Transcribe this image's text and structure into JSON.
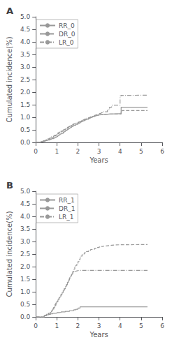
{
  "chart_data": [
    {
      "type": "step",
      "title": "A",
      "xlabel": "Years",
      "ylabel": "Cumulated incidence(%)",
      "xlim": [
        0,
        6
      ],
      "ylim": [
        0,
        5.0
      ],
      "xticks": [
        0,
        1,
        2,
        3,
        4,
        5,
        6
      ],
      "yticks": [
        {
          "value": 0.0,
          "label": "0.0"
        },
        0.5,
        {
          "value": 1.0,
          "label": "1.0"
        },
        1.5,
        {
          "value": 2.0,
          "label": "2.0"
        },
        2.5,
        {
          "value": 3.0,
          "label": "3.0"
        },
        3.5,
        {
          "value": 4.0,
          "label": "4.0"
        },
        4.5,
        {
          "value": 5.0,
          "label": "5.0"
        }
      ],
      "grid": false,
      "legend": "upper left",
      "series": [
        {
          "name": "RR_0",
          "color": "#999999",
          "line_style": "solid",
          "x": [
            0,
            0.25,
            0.35,
            0.45,
            0.55,
            0.65,
            0.7,
            0.75,
            0.85,
            0.9,
            0.95,
            1.0,
            1.05,
            1.1,
            1.15,
            1.2,
            1.3,
            1.35,
            1.4,
            1.45,
            1.5,
            1.55,
            1.6,
            1.65,
            1.7,
            1.75,
            1.8,
            1.9,
            2.0,
            2.05,
            2.1,
            2.15,
            2.2,
            2.25,
            2.3,
            2.35,
            2.4,
            2.5,
            2.55,
            2.6,
            2.65,
            2.7,
            2.8,
            2.85,
            2.9,
            3.0,
            3.1,
            3.2,
            3.4,
            3.5,
            4.0,
            4.05,
            5.3
          ],
          "values": [
            0,
            0.02,
            0.04,
            0.07,
            0.09,
            0.11,
            0.13,
            0.15,
            0.17,
            0.19,
            0.21,
            0.24,
            0.27,
            0.3,
            0.33,
            0.36,
            0.4,
            0.43,
            0.46,
            0.49,
            0.52,
            0.55,
            0.57,
            0.6,
            0.63,
            0.65,
            0.68,
            0.72,
            0.75,
            0.77,
            0.8,
            0.82,
            0.84,
            0.86,
            0.88,
            0.9,
            0.92,
            0.95,
            0.97,
            0.99,
            1.01,
            1.03,
            1.05,
            1.07,
            1.08,
            1.1,
            1.11,
            1.12,
            1.13,
            1.14,
            1.14,
            1.4,
            1.4
          ]
        },
        {
          "name": "DR_0",
          "color": "#999999",
          "line_style": "dashed",
          "x": [
            0,
            0.25,
            0.35,
            0.45,
            0.55,
            0.65,
            0.7,
            0.75,
            0.85,
            0.9,
            0.95,
            1.0,
            1.05,
            1.1,
            1.15,
            1.2,
            1.3,
            1.35,
            1.4,
            1.45,
            1.5,
            1.55,
            1.6,
            1.65,
            1.7,
            1.75,
            1.8,
            1.9,
            2.0,
            2.05,
            2.1,
            2.15,
            2.2,
            2.25,
            2.3,
            2.35,
            2.4,
            2.5,
            2.55,
            2.6,
            2.65,
            2.7,
            2.8,
            2.85,
            2.9,
            3.0,
            3.1,
            3.2,
            3.4,
            3.5,
            4.0,
            4.05,
            4.1,
            5.3
          ],
          "values": [
            0,
            0.03,
            0.06,
            0.09,
            0.12,
            0.15,
            0.18,
            0.2,
            0.23,
            0.26,
            0.29,
            0.32,
            0.35,
            0.38,
            0.41,
            0.44,
            0.47,
            0.5,
            0.53,
            0.55,
            0.58,
            0.61,
            0.63,
            0.66,
            0.68,
            0.71,
            0.73,
            0.76,
            0.79,
            0.81,
            0.83,
            0.85,
            0.87,
            0.89,
            0.91,
            0.92,
            0.94,
            0.96,
            0.98,
            1.0,
            1.01,
            1.03,
            1.05,
            1.07,
            1.09,
            1.1,
            1.11,
            1.12,
            1.13,
            1.13,
            1.13,
            1.25,
            1.27,
            1.27
          ]
        },
        {
          "name": "LR_0",
          "color": "#999999",
          "line_style": "dashdot",
          "x": [
            0,
            0.25,
            0.35,
            0.45,
            0.55,
            0.65,
            0.7,
            0.75,
            0.85,
            0.9,
            0.95,
            1.0,
            1.05,
            1.1,
            1.15,
            1.2,
            1.3,
            1.35,
            1.4,
            1.45,
            1.5,
            1.55,
            1.6,
            1.65,
            1.7,
            1.75,
            1.8,
            1.9,
            2.0,
            2.05,
            2.1,
            2.15,
            2.2,
            2.25,
            2.3,
            2.35,
            2.4,
            2.5,
            2.55,
            2.6,
            2.65,
            2.7,
            2.8,
            2.85,
            2.9,
            3.0,
            3.1,
            3.2,
            3.4,
            3.5,
            3.6,
            4.0,
            4.05,
            4.1,
            5.3
          ],
          "values": [
            0,
            0.03,
            0.07,
            0.11,
            0.14,
            0.17,
            0.2,
            0.23,
            0.26,
            0.29,
            0.32,
            0.35,
            0.38,
            0.41,
            0.44,
            0.47,
            0.5,
            0.52,
            0.55,
            0.57,
            0.6,
            0.62,
            0.64,
            0.67,
            0.69,
            0.72,
            0.74,
            0.77,
            0.8,
            0.82,
            0.84,
            0.86,
            0.88,
            0.9,
            0.92,
            0.94,
            0.96,
            0.98,
            1.0,
            1.02,
            1.04,
            1.06,
            1.08,
            1.1,
            1.12,
            1.15,
            1.18,
            1.22,
            1.3,
            1.4,
            1.48,
            1.85,
            1.87,
            1.88,
            1.88
          ]
        }
      ]
    },
    {
      "type": "step",
      "title": "B",
      "xlabel": "Years",
      "ylabel": "Cumulated incidence(%)",
      "xlim": [
        0,
        6
      ],
      "ylim": [
        0,
        5.0
      ],
      "xticks": [
        0,
        1,
        2,
        3,
        4,
        5,
        6
      ],
      "yticks": [
        {
          "value": 0.0,
          "label": "0.0"
        },
        0.5,
        {
          "value": 1.0,
          "label": "1.0"
        },
        1.5,
        {
          "value": 2.0,
          "label": "2.0"
        },
        2.5,
        {
          "value": 3.0,
          "label": "3.0"
        },
        3.5,
        {
          "value": 4.0,
          "label": "4.0"
        },
        4.5,
        {
          "value": 5.0,
          "label": "5.0"
        }
      ],
      "grid": false,
      "legend": "upper left",
      "series": [
        {
          "name": "RR_1",
          "color": "#999999",
          "line_style": "solid",
          "x": [
            0,
            0.4,
            0.5,
            0.6,
            0.7,
            0.8,
            0.9,
            1.0,
            1.1,
            1.2,
            1.4,
            1.6,
            1.8,
            1.9,
            2.0,
            2.1,
            5.3
          ],
          "values": [
            0,
            0.05,
            0.08,
            0.1,
            0.12,
            0.14,
            0.15,
            0.17,
            0.18,
            0.2,
            0.22,
            0.25,
            0.28,
            0.3,
            0.35,
            0.4,
            0.4
          ]
        },
        {
          "name": "DR_1",
          "color": "#999999",
          "line_style": "dashed",
          "x": [
            0,
            0.4,
            0.5,
            0.6,
            0.7,
            0.75,
            0.8,
            0.85,
            0.9,
            0.95,
            1.0,
            1.05,
            1.1,
            1.15,
            1.2,
            1.25,
            1.3,
            1.35,
            1.4,
            1.45,
            1.5,
            1.55,
            1.6,
            1.65,
            1.7,
            1.75,
            1.8,
            1.85,
            1.9,
            1.95,
            2.0,
            2.05,
            2.1,
            2.15,
            2.2,
            2.3,
            2.4,
            2.5,
            2.6,
            2.7,
            2.8,
            2.9,
            3.0,
            3.1,
            3.2,
            3.3,
            3.4,
            3.5,
            3.6,
            3.7,
            4.0,
            4.1,
            5.3
          ],
          "values": [
            0,
            0.05,
            0.1,
            0.15,
            0.2,
            0.25,
            0.3,
            0.38,
            0.45,
            0.52,
            0.6,
            0.68,
            0.76,
            0.83,
            0.9,
            0.97,
            1.05,
            1.12,
            1.2,
            1.28,
            1.38,
            1.47,
            1.55,
            1.63,
            1.72,
            1.8,
            1.9,
            1.98,
            2.05,
            2.12,
            2.2,
            2.28,
            2.35,
            2.42,
            2.5,
            2.55,
            2.6,
            2.65,
            2.68,
            2.7,
            2.73,
            2.76,
            2.78,
            2.8,
            2.82,
            2.83,
            2.84,
            2.85,
            2.86,
            2.87,
            2.87,
            2.88,
            2.88
          ]
        },
        {
          "name": "LR_1",
          "color": "#999999",
          "line_style": "dashdot",
          "x": [
            0,
            0.4,
            0.5,
            0.6,
            0.7,
            0.75,
            0.8,
            0.85,
            0.9,
            0.95,
            1.0,
            1.05,
            1.1,
            1.15,
            1.2,
            1.25,
            1.3,
            1.35,
            1.4,
            1.45,
            1.5,
            1.55,
            1.6,
            1.65,
            1.7,
            1.75,
            1.8,
            1.85,
            1.9,
            1.95,
            2.0,
            2.05,
            2.1,
            2.2,
            2.3,
            2.4,
            2.5,
            3.0,
            3.5,
            4.0,
            5.3
          ],
          "values": [
            0,
            0.05,
            0.1,
            0.15,
            0.2,
            0.26,
            0.32,
            0.4,
            0.48,
            0.55,
            0.62,
            0.68,
            0.75,
            0.82,
            0.9,
            0.98,
            1.05,
            1.12,
            1.2,
            1.28,
            1.38,
            1.47,
            1.55,
            1.63,
            1.7,
            1.75,
            1.8,
            1.82,
            1.83,
            1.84,
            1.85,
            1.85,
            1.85,
            1.85,
            1.85,
            1.85,
            1.85,
            1.85,
            1.85,
            1.85,
            1.85
          ]
        }
      ]
    }
  ]
}
